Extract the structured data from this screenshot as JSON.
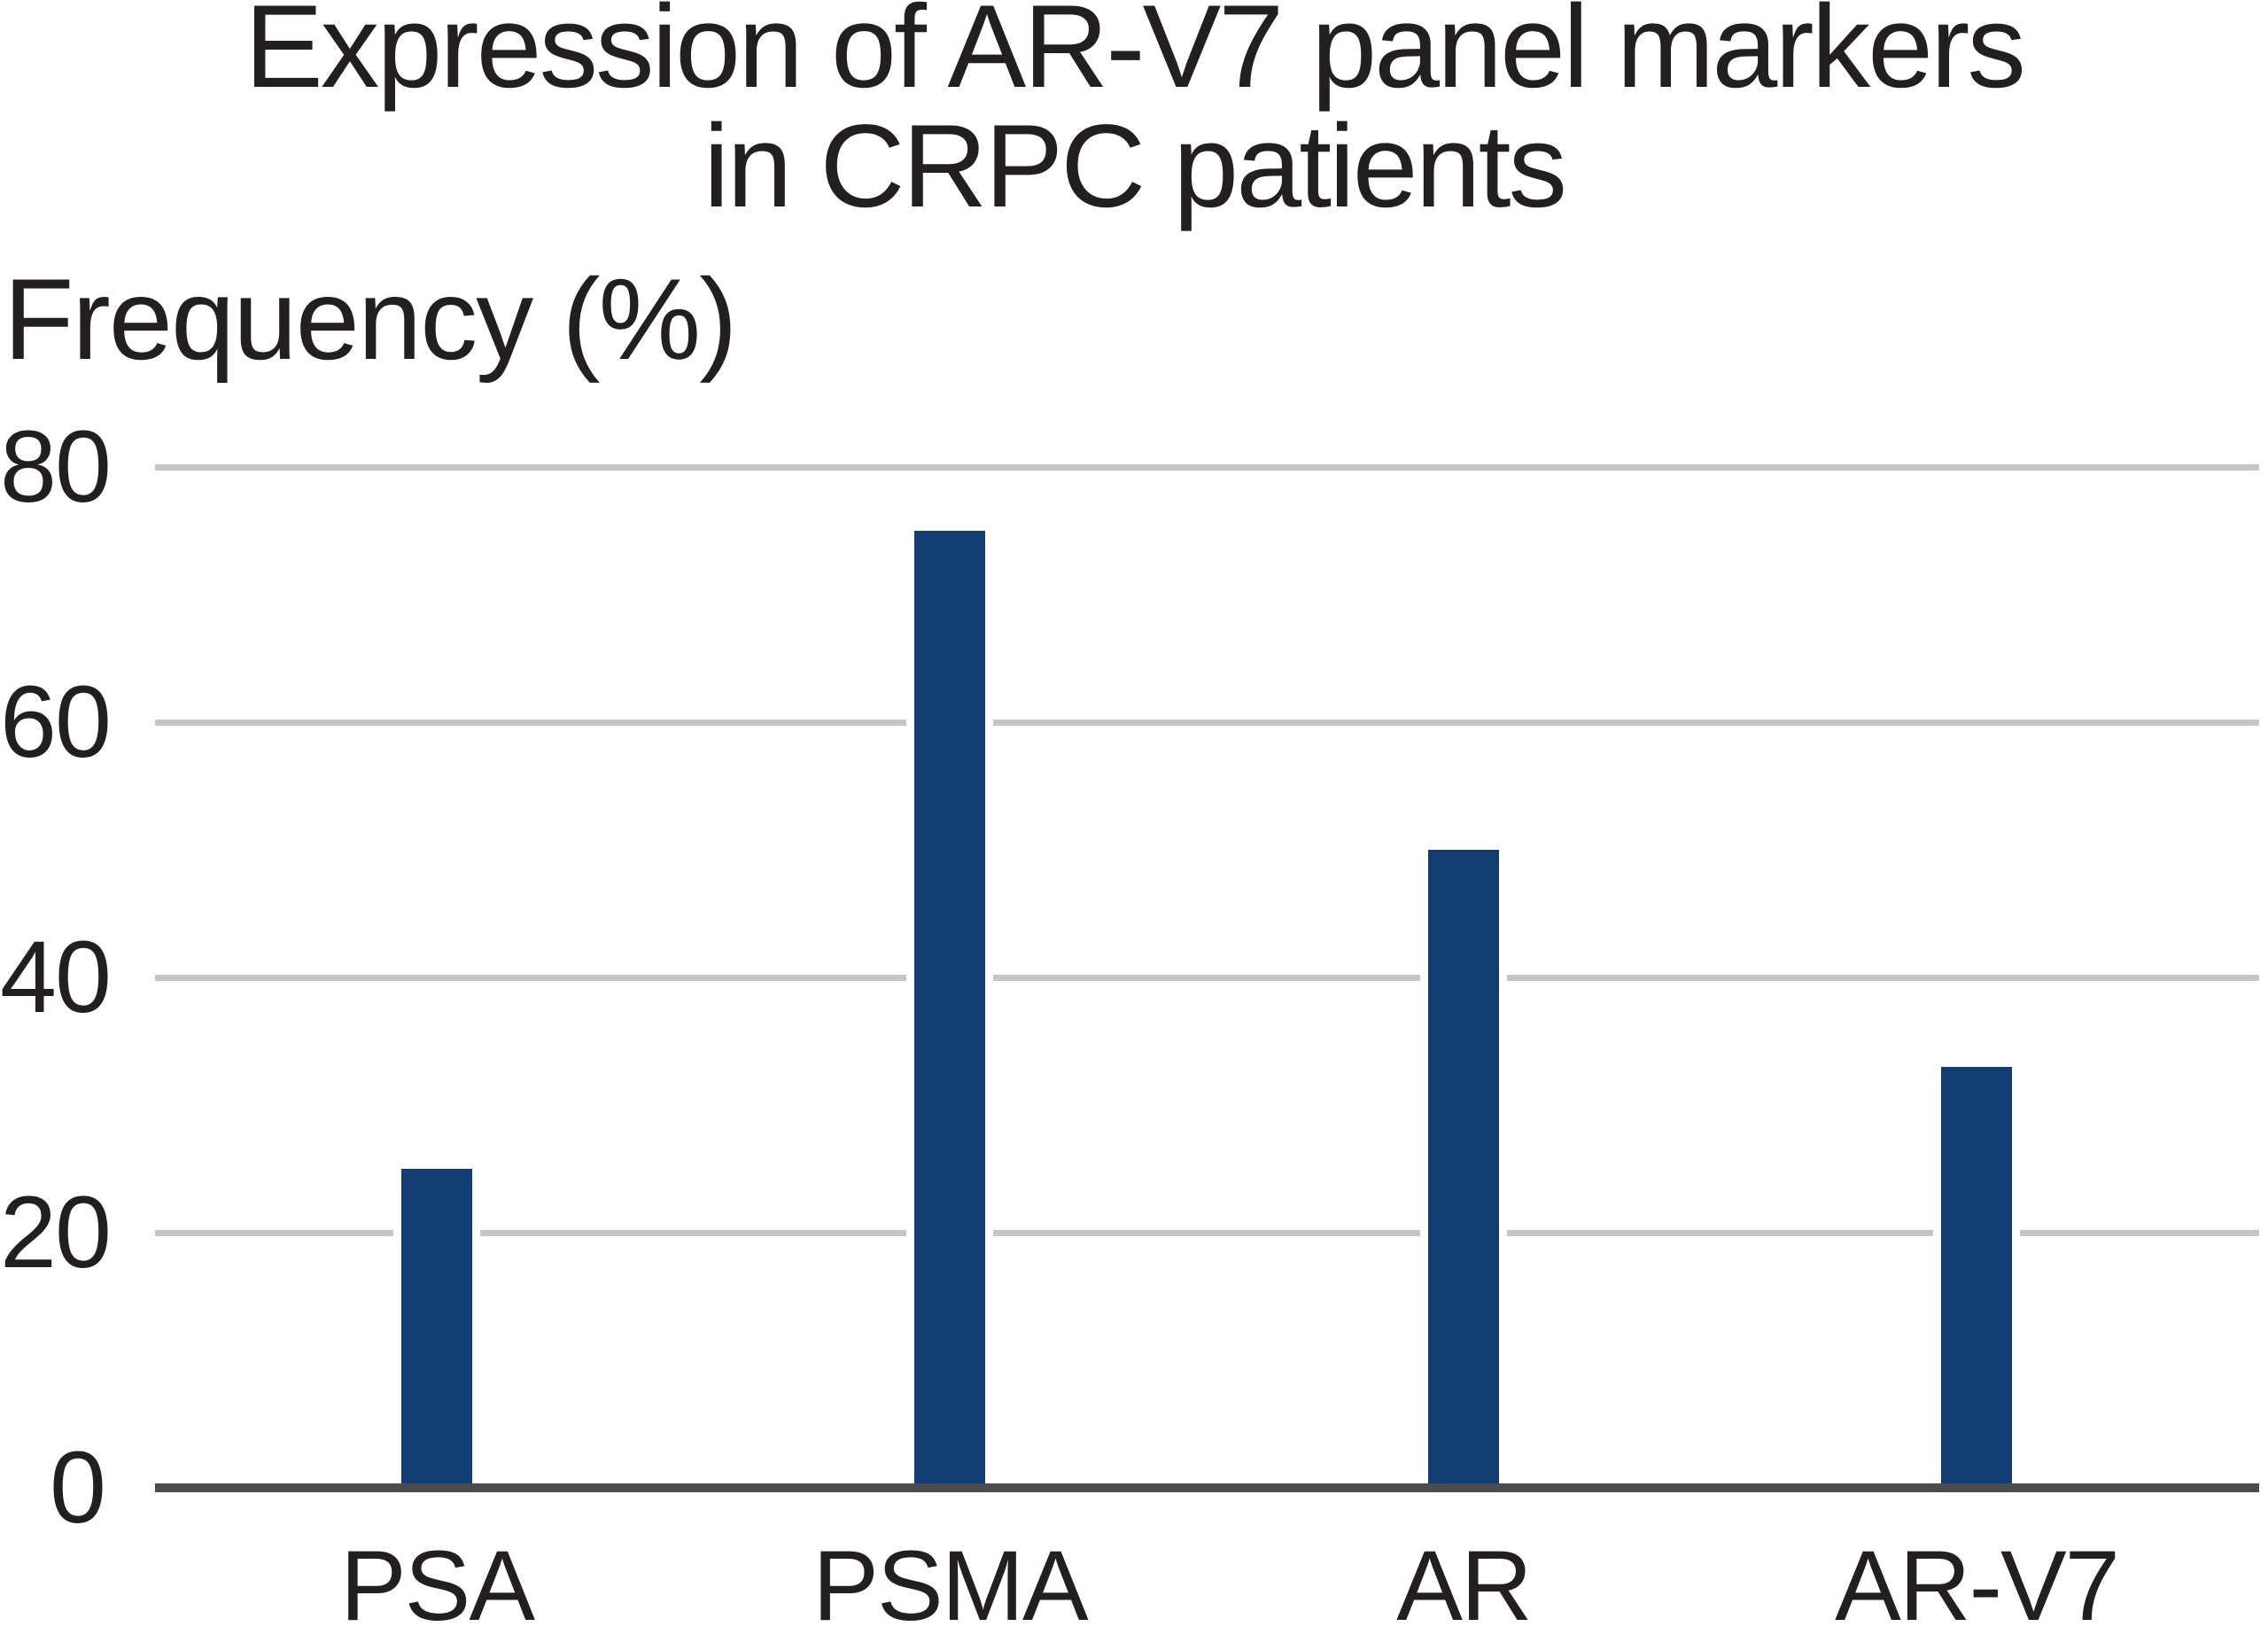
{
  "chart_data": {
    "type": "bar",
    "title": "Expression of AR-V7 panel markers in CRPC patients",
    "title_lines": [
      "Expression of AR-V7 panel markers",
      "in CRPC patients"
    ],
    "ylabel": "Frequency (%)",
    "xlabel": "",
    "categories": [
      "PSA",
      "PSMA",
      "AR",
      "AR-V7"
    ],
    "values": [
      25,
      75,
      50,
      33
    ],
    "yticks": [
      0,
      20,
      40,
      60,
      80
    ],
    "ylim": [
      0,
      80
    ],
    "grid": "horizontal",
    "legend": "none",
    "bar_color": "#133e73",
    "gridline_color": "#c6c6c6",
    "axis_color": "#4c4c4e",
    "text_color": "#231f20"
  }
}
